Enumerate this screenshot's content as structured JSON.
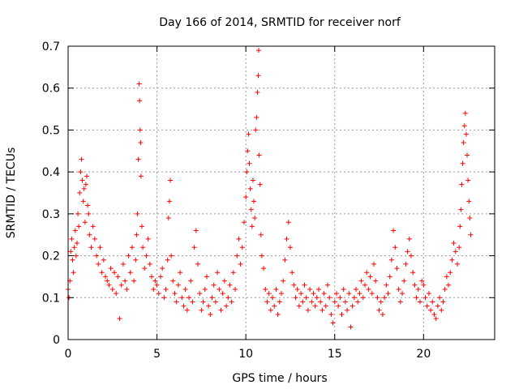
{
  "chart_data": {
    "type": "scatter",
    "title": "Day 166 of 2014, SRMTID for receiver norf",
    "xlabel": "GPS time / hours",
    "ylabel": "SRMTID / TECUs",
    "xlim": [
      0,
      24
    ],
    "ylim": [
      0,
      0.7
    ],
    "xticks": [
      0,
      5,
      10,
      15,
      20
    ],
    "yticks": [
      0,
      0.1,
      0.2,
      0.3,
      0.4,
      0.5,
      0.6,
      0.7
    ],
    "xtick_labels": [
      "0",
      "5",
      "10",
      "15",
      "20"
    ],
    "ytick_labels": [
      "0",
      "0.1",
      "0.2",
      "0.3",
      "0.4",
      "0.5",
      "0.6",
      "0.7"
    ],
    "grid": true,
    "marker": "+",
    "color": "#ff0000",
    "series": [
      {
        "name": "SRMTID",
        "points": [
          [
            0.0,
            0.12
          ],
          [
            0.05,
            0.1
          ],
          [
            0.1,
            0.14
          ],
          [
            0.15,
            0.21
          ],
          [
            0.2,
            0.24
          ],
          [
            0.25,
            0.19
          ],
          [
            0.3,
            0.16
          ],
          [
            0.35,
            0.22
          ],
          [
            0.4,
            0.26
          ],
          [
            0.45,
            0.2
          ],
          [
            0.5,
            0.23
          ],
          [
            0.55,
            0.3
          ],
          [
            0.6,
            0.27
          ],
          [
            0.65,
            0.35
          ],
          [
            0.7,
            0.4
          ],
          [
            0.75,
            0.43
          ],
          [
            0.8,
            0.38
          ],
          [
            0.85,
            0.33
          ],
          [
            0.9,
            0.36
          ],
          [
            0.95,
            0.28
          ],
          [
            1.0,
            0.37
          ],
          [
            1.05,
            0.39
          ],
          [
            1.1,
            0.32
          ],
          [
            1.15,
            0.3
          ],
          [
            1.2,
            0.25
          ],
          [
            1.3,
            0.22
          ],
          [
            1.4,
            0.27
          ],
          [
            1.5,
            0.24
          ],
          [
            1.6,
            0.2
          ],
          [
            1.7,
            0.18
          ],
          [
            1.8,
            0.22
          ],
          [
            1.9,
            0.16
          ],
          [
            2.0,
            0.19
          ],
          [
            2.1,
            0.15
          ],
          [
            2.2,
            0.14
          ],
          [
            2.3,
            0.13
          ],
          [
            2.4,
            0.17
          ],
          [
            2.5,
            0.12
          ],
          [
            2.6,
            0.16
          ],
          [
            2.7,
            0.11
          ],
          [
            2.8,
            0.15
          ],
          [
            2.9,
            0.05
          ],
          [
            3.0,
            0.13
          ],
          [
            3.1,
            0.18
          ],
          [
            3.2,
            0.14
          ],
          [
            3.3,
            0.12
          ],
          [
            3.4,
            0.2
          ],
          [
            3.5,
            0.16
          ],
          [
            3.6,
            0.22
          ],
          [
            3.7,
            0.14
          ],
          [
            3.8,
            0.19
          ],
          [
            3.85,
            0.25
          ],
          [
            3.9,
            0.3
          ],
          [
            3.95,
            0.43
          ],
          [
            4.0,
            0.61
          ],
          [
            4.02,
            0.57
          ],
          [
            4.05,
            0.5
          ],
          [
            4.08,
            0.47
          ],
          [
            4.1,
            0.39
          ],
          [
            4.15,
            0.27
          ],
          [
            4.2,
            0.22
          ],
          [
            4.3,
            0.17
          ],
          [
            4.4,
            0.2
          ],
          [
            4.5,
            0.24
          ],
          [
            4.6,
            0.18
          ],
          [
            4.7,
            0.15
          ],
          [
            4.8,
            0.12
          ],
          [
            4.9,
            0.14
          ],
          [
            5.0,
            0.13
          ],
          [
            5.1,
            0.11
          ],
          [
            5.2,
            0.15
          ],
          [
            5.3,
            0.17
          ],
          [
            5.4,
            0.1
          ],
          [
            5.5,
            0.12
          ],
          [
            5.6,
            0.19
          ],
          [
            5.65,
            0.29
          ],
          [
            5.7,
            0.33
          ],
          [
            5.75,
            0.38
          ],
          [
            5.8,
            0.2
          ],
          [
            5.9,
            0.14
          ],
          [
            6.0,
            0.11
          ],
          [
            6.1,
            0.09
          ],
          [
            6.2,
            0.13
          ],
          [
            6.3,
            0.16
          ],
          [
            6.4,
            0.1
          ],
          [
            6.5,
            0.08
          ],
          [
            6.6,
            0.12
          ],
          [
            6.7,
            0.07
          ],
          [
            6.8,
            0.1
          ],
          [
            6.9,
            0.14
          ],
          [
            7.0,
            0.09
          ],
          [
            7.1,
            0.22
          ],
          [
            7.2,
            0.26
          ],
          [
            7.3,
            0.18
          ],
          [
            7.4,
            0.11
          ],
          [
            7.5,
            0.07
          ],
          [
            7.6,
            0.09
          ],
          [
            7.7,
            0.12
          ],
          [
            7.8,
            0.15
          ],
          [
            7.9,
            0.08
          ],
          [
            8.0,
            0.06
          ],
          [
            8.1,
            0.1
          ],
          [
            8.2,
            0.13
          ],
          [
            8.3,
            0.09
          ],
          [
            8.4,
            0.16
          ],
          [
            8.5,
            0.12
          ],
          [
            8.6,
            0.07
          ],
          [
            8.7,
            0.11
          ],
          [
            8.8,
            0.14
          ],
          [
            8.9,
            0.08
          ],
          [
            9.0,
            0.1
          ],
          [
            9.1,
            0.13
          ],
          [
            9.2,
            0.09
          ],
          [
            9.3,
            0.16
          ],
          [
            9.4,
            0.12
          ],
          [
            9.5,
            0.2
          ],
          [
            9.6,
            0.24
          ],
          [
            9.7,
            0.18
          ],
          [
            9.8,
            0.22
          ],
          [
            9.9,
            0.28
          ],
          [
            10.0,
            0.34
          ],
          [
            10.05,
            0.4
          ],
          [
            10.1,
            0.45
          ],
          [
            10.15,
            0.49
          ],
          [
            10.2,
            0.42
          ],
          [
            10.25,
            0.36
          ],
          [
            10.3,
            0.31
          ],
          [
            10.35,
            0.27
          ],
          [
            10.4,
            0.38
          ],
          [
            10.45,
            0.33
          ],
          [
            10.5,
            0.29
          ],
          [
            10.55,
            0.5
          ],
          [
            10.6,
            0.53
          ],
          [
            10.65,
            0.59
          ],
          [
            10.7,
            0.63
          ],
          [
            10.72,
            0.69
          ],
          [
            10.75,
            0.44
          ],
          [
            10.8,
            0.37
          ],
          [
            10.85,
            0.25
          ],
          [
            10.9,
            0.2
          ],
          [
            11.0,
            0.17
          ],
          [
            11.1,
            0.12
          ],
          [
            11.2,
            0.09
          ],
          [
            11.3,
            0.11
          ],
          [
            11.4,
            0.07
          ],
          [
            11.5,
            0.1
          ],
          [
            11.6,
            0.08
          ],
          [
            11.7,
            0.12
          ],
          [
            11.8,
            0.06
          ],
          [
            11.9,
            0.09
          ],
          [
            12.0,
            0.11
          ],
          [
            12.1,
            0.14
          ],
          [
            12.2,
            0.19
          ],
          [
            12.3,
            0.24
          ],
          [
            12.4,
            0.28
          ],
          [
            12.5,
            0.22
          ],
          [
            12.6,
            0.16
          ],
          [
            12.7,
            0.13
          ],
          [
            12.8,
            0.1
          ],
          [
            12.9,
            0.12
          ],
          [
            13.0,
            0.08
          ],
          [
            13.1,
            0.11
          ],
          [
            13.2,
            0.09
          ],
          [
            13.3,
            0.13
          ],
          [
            13.4,
            0.1
          ],
          [
            13.5,
            0.07
          ],
          [
            13.6,
            0.12
          ],
          [
            13.7,
            0.09
          ],
          [
            13.8,
            0.11
          ],
          [
            13.9,
            0.08
          ],
          [
            14.0,
            0.1
          ],
          [
            14.1,
            0.12
          ],
          [
            14.2,
            0.09
          ],
          [
            14.3,
            0.07
          ],
          [
            14.4,
            0.11
          ],
          [
            14.5,
            0.08
          ],
          [
            14.6,
            0.13
          ],
          [
            14.7,
            0.1
          ],
          [
            14.8,
            0.06
          ],
          [
            14.9,
            0.04
          ],
          [
            15.0,
            0.09
          ],
          [
            15.1,
            0.11
          ],
          [
            15.2,
            0.08
          ],
          [
            15.3,
            0.1
          ],
          [
            15.4,
            0.06
          ],
          [
            15.5,
            0.12
          ],
          [
            15.6,
            0.09
          ],
          [
            15.7,
            0.07
          ],
          [
            15.8,
            0.11
          ],
          [
            15.9,
            0.03
          ],
          [
            16.0,
            0.08
          ],
          [
            16.1,
            0.1
          ],
          [
            16.2,
            0.12
          ],
          [
            16.3,
            0.09
          ],
          [
            16.4,
            0.11
          ],
          [
            16.5,
            0.14
          ],
          [
            16.6,
            0.1
          ],
          [
            16.7,
            0.13
          ],
          [
            16.8,
            0.16
          ],
          [
            16.9,
            0.12
          ],
          [
            17.0,
            0.15
          ],
          [
            17.1,
            0.11
          ],
          [
            17.2,
            0.18
          ],
          [
            17.3,
            0.14
          ],
          [
            17.4,
            0.1
          ],
          [
            17.5,
            0.07
          ],
          [
            17.6,
            0.09
          ],
          [
            17.7,
            0.06
          ],
          [
            17.8,
            0.1
          ],
          [
            17.9,
            0.13
          ],
          [
            18.0,
            0.11
          ],
          [
            18.1,
            0.15
          ],
          [
            18.2,
            0.19
          ],
          [
            18.3,
            0.26
          ],
          [
            18.4,
            0.22
          ],
          [
            18.5,
            0.17
          ],
          [
            18.6,
            0.12
          ],
          [
            18.7,
            0.09
          ],
          [
            18.8,
            0.11
          ],
          [
            18.9,
            0.14
          ],
          [
            19.0,
            0.18
          ],
          [
            19.1,
            0.21
          ],
          [
            19.2,
            0.24
          ],
          [
            19.3,
            0.2
          ],
          [
            19.4,
            0.16
          ],
          [
            19.5,
            0.13
          ],
          [
            19.6,
            0.1
          ],
          [
            19.7,
            0.12
          ],
          [
            19.8,
            0.09
          ],
          [
            19.9,
            0.14
          ],
          [
            20.0,
            0.13
          ],
          [
            20.1,
            0.1
          ],
          [
            20.2,
            0.08
          ],
          [
            20.3,
            0.11
          ],
          [
            20.4,
            0.07
          ],
          [
            20.5,
            0.09
          ],
          [
            20.6,
            0.06
          ],
          [
            20.7,
            0.05
          ],
          [
            20.8,
            0.08
          ],
          [
            20.9,
            0.1
          ],
          [
            21.0,
            0.07
          ],
          [
            21.1,
            0.09
          ],
          [
            21.2,
            0.12
          ],
          [
            21.3,
            0.15
          ],
          [
            21.4,
            0.13
          ],
          [
            21.5,
            0.16
          ],
          [
            21.6,
            0.19
          ],
          [
            21.7,
            0.23
          ],
          [
            21.8,
            0.21
          ],
          [
            21.9,
            0.18
          ],
          [
            22.0,
            0.22
          ],
          [
            22.05,
            0.27
          ],
          [
            22.1,
            0.31
          ],
          [
            22.15,
            0.37
          ],
          [
            22.2,
            0.42
          ],
          [
            22.25,
            0.47
          ],
          [
            22.3,
            0.51
          ],
          [
            22.35,
            0.54
          ],
          [
            22.4,
            0.49
          ],
          [
            22.45,
            0.44
          ],
          [
            22.5,
            0.38
          ],
          [
            22.55,
            0.33
          ],
          [
            22.6,
            0.29
          ],
          [
            22.65,
            0.25
          ]
        ]
      }
    ]
  }
}
